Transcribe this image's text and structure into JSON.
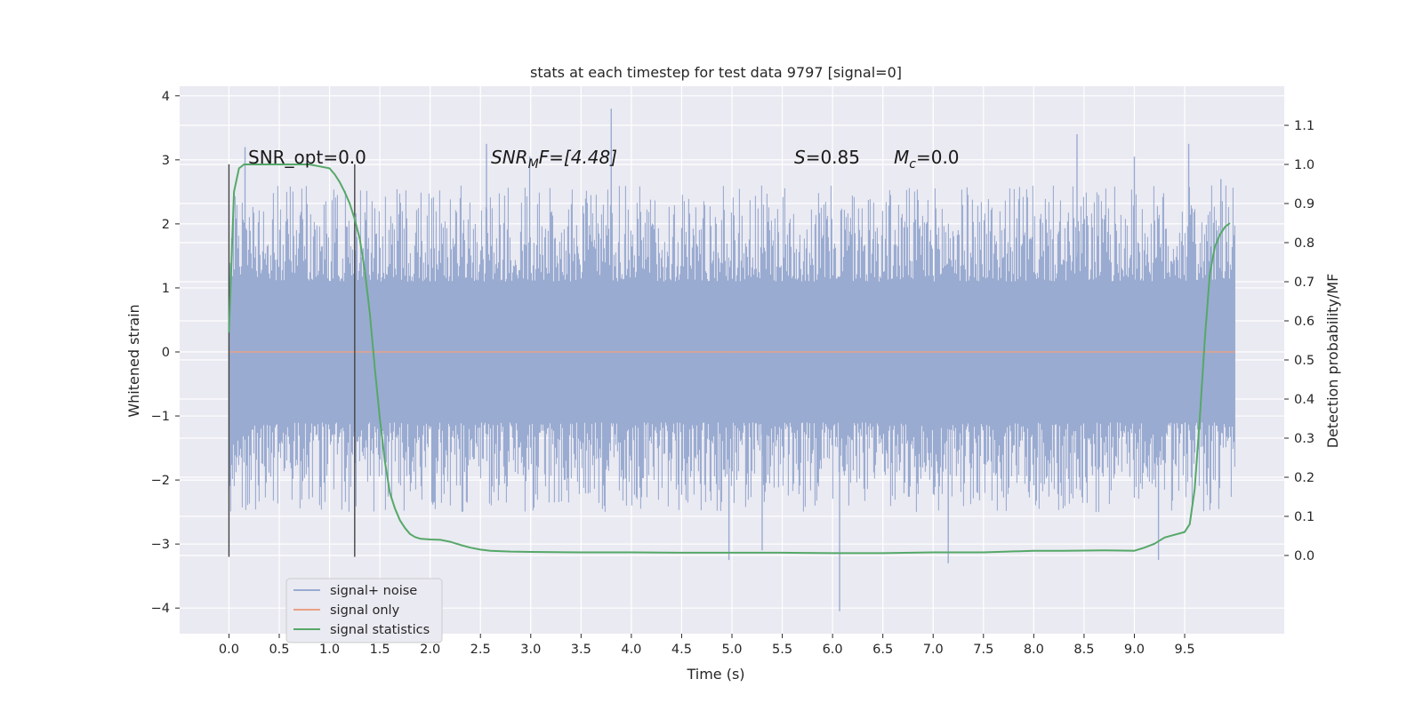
{
  "chart_data": {
    "type": "line",
    "title": "stats at each timestep for test data 9797 [signal=0]",
    "xlabel": "Time (s)",
    "ylabel": "Whitened strain",
    "ylabel_right": "Detection probability/MF",
    "xlim": [
      -0.49,
      10.49
    ],
    "ylim": [
      -4.4,
      4.15
    ],
    "ylim_right": [
      -0.2,
      1.2
    ],
    "x_ticks": [
      "0.0",
      "0.5",
      "1.0",
      "1.5",
      "2.0",
      "2.5",
      "3.0",
      "3.5",
      "4.0",
      "4.5",
      "5.0",
      "5.5",
      "6.0",
      "6.5",
      "7.0",
      "7.5",
      "8.0",
      "8.5",
      "9.0",
      "9.5"
    ],
    "y_ticks": [
      "-4",
      "-3",
      "-2",
      "-1",
      "0",
      "1",
      "2",
      "3",
      "4"
    ],
    "y_ticks_right": [
      "0.0",
      "0.1",
      "0.2",
      "0.3",
      "0.4",
      "0.5",
      "0.6",
      "0.7",
      "0.8",
      "0.9",
      "1.0",
      "1.1"
    ],
    "grid": true,
    "legend_position": "lower-left",
    "annotations": {
      "snr_opt": "SNR_opt=0.0",
      "snr_mf_main": "SNR",
      "snr_mf_sub": "M",
      "snr_mf_tail": "F=[4.48]",
      "s_main": "S",
      "s_tail": "=0.85",
      "mc_main": "M",
      "mc_sub": "c",
      "mc_tail": "=0.0"
    },
    "vlines": [
      0.0,
      1.25
    ],
    "series": [
      {
        "name": "signal+ noise",
        "color": "#9aabd1",
        "duration": [
          0.0,
          10.0
        ],
        "band": [
          -1.1,
          1.1
        ],
        "typical_peaks": [
          -2.5,
          2.6
        ],
        "spikes": [
          [
            0.16,
            3.2
          ],
          [
            2.56,
            3.25
          ],
          [
            2.99,
            3.05
          ],
          [
            3.8,
            3.8
          ],
          [
            4.97,
            -3.25
          ],
          [
            5.3,
            -3.1
          ],
          [
            6.07,
            -4.05
          ],
          [
            7.15,
            -3.3
          ],
          [
            8.43,
            3.4
          ],
          [
            9.0,
            3.05
          ],
          [
            9.24,
            -3.25
          ],
          [
            9.54,
            3.25
          ],
          [
            9.86,
            2.7
          ]
        ]
      },
      {
        "name": "signal only",
        "color": "#e8a185",
        "x": [
          0.0,
          10.0
        ],
        "y": [
          0.0,
          0.0
        ]
      },
      {
        "name": "signal statistics",
        "color": "#55a868",
        "axis": "right",
        "x": [
          0.0,
          0.05,
          0.1,
          0.15,
          0.2,
          0.3,
          0.4,
          0.5,
          0.6,
          0.7,
          0.8,
          0.9,
          1.0,
          1.05,
          1.1,
          1.15,
          1.2,
          1.25,
          1.3,
          1.35,
          1.4,
          1.45,
          1.5,
          1.55,
          1.6,
          1.65,
          1.7,
          1.75,
          1.8,
          1.85,
          1.9,
          2.0,
          2.1,
          2.2,
          2.3,
          2.4,
          2.5,
          2.6,
          2.8,
          3.0,
          3.5,
          4.0,
          4.5,
          5.0,
          5.5,
          6.0,
          6.5,
          7.0,
          7.5,
          8.0,
          8.3,
          8.7,
          9.0,
          9.1,
          9.2,
          9.3,
          9.4,
          9.5,
          9.55,
          9.6,
          9.65,
          9.7,
          9.75,
          9.8,
          9.85,
          9.9,
          9.95
        ],
        "y": [
          0.57,
          0.93,
          0.99,
          1.0,
          1.0,
          1.0,
          1.0,
          1.0,
          1.0,
          1.0,
          1.0,
          0.995,
          0.99,
          0.975,
          0.955,
          0.93,
          0.9,
          0.86,
          0.81,
          0.73,
          0.62,
          0.48,
          0.35,
          0.24,
          0.16,
          0.12,
          0.09,
          0.07,
          0.055,
          0.047,
          0.043,
          0.041,
          0.04,
          0.035,
          0.027,
          0.02,
          0.015,
          0.012,
          0.01,
          0.009,
          0.008,
          0.008,
          0.007,
          0.007,
          0.007,
          0.006,
          0.006,
          0.008,
          0.008,
          0.012,
          0.012,
          0.013,
          0.012,
          0.02,
          0.03,
          0.046,
          0.053,
          0.06,
          0.08,
          0.17,
          0.35,
          0.55,
          0.72,
          0.79,
          0.82,
          0.84,
          0.85
        ]
      }
    ]
  }
}
